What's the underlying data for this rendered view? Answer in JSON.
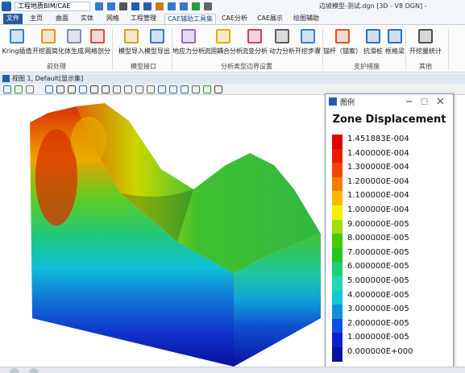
{
  "app": {
    "workspace": "工程地质BIM/CAE",
    "title": "边坡模型-测试.dgn [3D - V8 DGN] -"
  },
  "tabs": [
    "文件",
    "主页",
    "曲面",
    "实体",
    "网格",
    "工程管理",
    "CAE辅助工具集",
    "CAE分析",
    "CAE展示",
    "绘图辅助"
  ],
  "active_tab": 6,
  "ribbon_groups": [
    {
      "label": "前处理",
      "buttons": [
        "Kring插值",
        "开挖面简化",
        "体生成",
        "网格剖分"
      ]
    },
    {
      "label": "模型接口",
      "buttons": [
        "模型导入",
        "模型导出"
      ]
    },
    {
      "label": "分析类型边界设置",
      "buttons": [
        "地应力分析",
        "流固耦合分析",
        "流变分析",
        "动力分析",
        "开挖步骤"
      ]
    },
    {
      "label": "支护措施",
      "buttons": [
        "锚杆（锚索）",
        "抗滑桩",
        "框格梁"
      ]
    },
    {
      "label": "其他",
      "buttons": [
        "开挖量统计"
      ]
    }
  ],
  "view": {
    "title": "视图 1, Default[显示集]"
  },
  "legend": {
    "window_title": "图例",
    "title": "Zone Displacement",
    "entries": [
      {
        "label": "1.451883E-004",
        "color": "#e00000"
      },
      {
        "label": "1.400000E-004",
        "color": "#e81c00"
      },
      {
        "label": "1.300000E-004",
        "color": "#f04800"
      },
      {
        "label": "1.200000E-004",
        "color": "#f47c00"
      },
      {
        "label": "1.100000E-004",
        "color": "#f8b800"
      },
      {
        "label": "1.000000E-004",
        "color": "#f0f000"
      },
      {
        "label": "9.000000E-005",
        "color": "#9ce000"
      },
      {
        "label": "8.000000E-005",
        "color": "#44cc00"
      },
      {
        "label": "7.000000E-005",
        "color": "#20c820"
      },
      {
        "label": "6.000000E-005",
        "color": "#20d070"
      },
      {
        "label": "5.000000E-005",
        "color": "#20d8b0"
      },
      {
        "label": "4.000000E-005",
        "color": "#10c8d8"
      },
      {
        "label": "3.000000E-005",
        "color": "#1090d8"
      },
      {
        "label": "2.000000E-005",
        "color": "#1050d8"
      },
      {
        "label": "1.000000E-005",
        "color": "#1020c8"
      },
      {
        "label": "0.000000E+000",
        "color": "#0a10a0"
      }
    ]
  }
}
